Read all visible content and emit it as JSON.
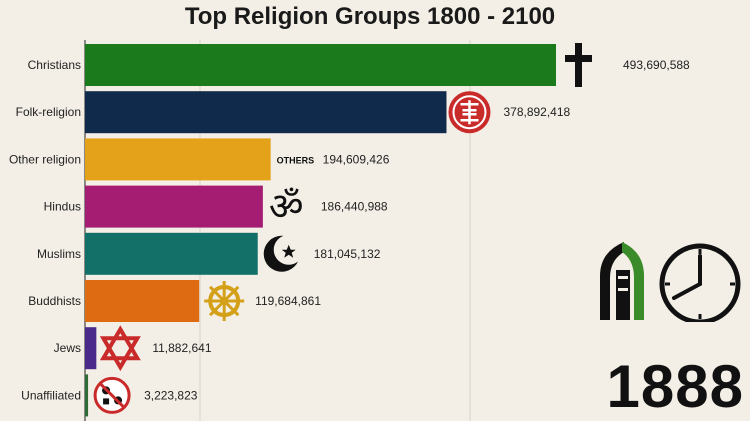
{
  "title": "Top Religion Groups 1800 - 2100",
  "year": "1888",
  "chart_data": {
    "type": "bar",
    "orientation": "horizontal",
    "title": "Top Religion Groups 1800 - 2100",
    "categories": [
      "Christians",
      "Folk-religion",
      "Other religion",
      "Hindus",
      "Muslims",
      "Buddhists",
      "Jews",
      "Unaffiliated"
    ],
    "values": [
      493690588,
      378892418,
      194609426,
      186440988,
      181045132,
      119684861,
      11882641,
      3223823
    ],
    "value_labels": [
      "493,690,588",
      "378,892,418",
      "194,609,426",
      "186,440,988",
      "181,045,132",
      "119,684,861",
      "11,882,641",
      "3,223,823"
    ],
    "icons": [
      "cross-icon",
      "folk-symbol-icon",
      "others-text-icon",
      "om-icon",
      "crescent-star-icon",
      "dharma-wheel-icon",
      "star-of-david-icon",
      "unaffiliated-icon"
    ],
    "icon_text": {
      "others": "OTHERS"
    },
    "colors": [
      "#1b7a1b",
      "#0f2a4a",
      "#e3a21a",
      "#a51c73",
      "#127068",
      "#de6a12",
      "#4a2a8a",
      "#2e6b35"
    ],
    "xlim": [
      0,
      493690588
    ],
    "grid": true
  }
}
